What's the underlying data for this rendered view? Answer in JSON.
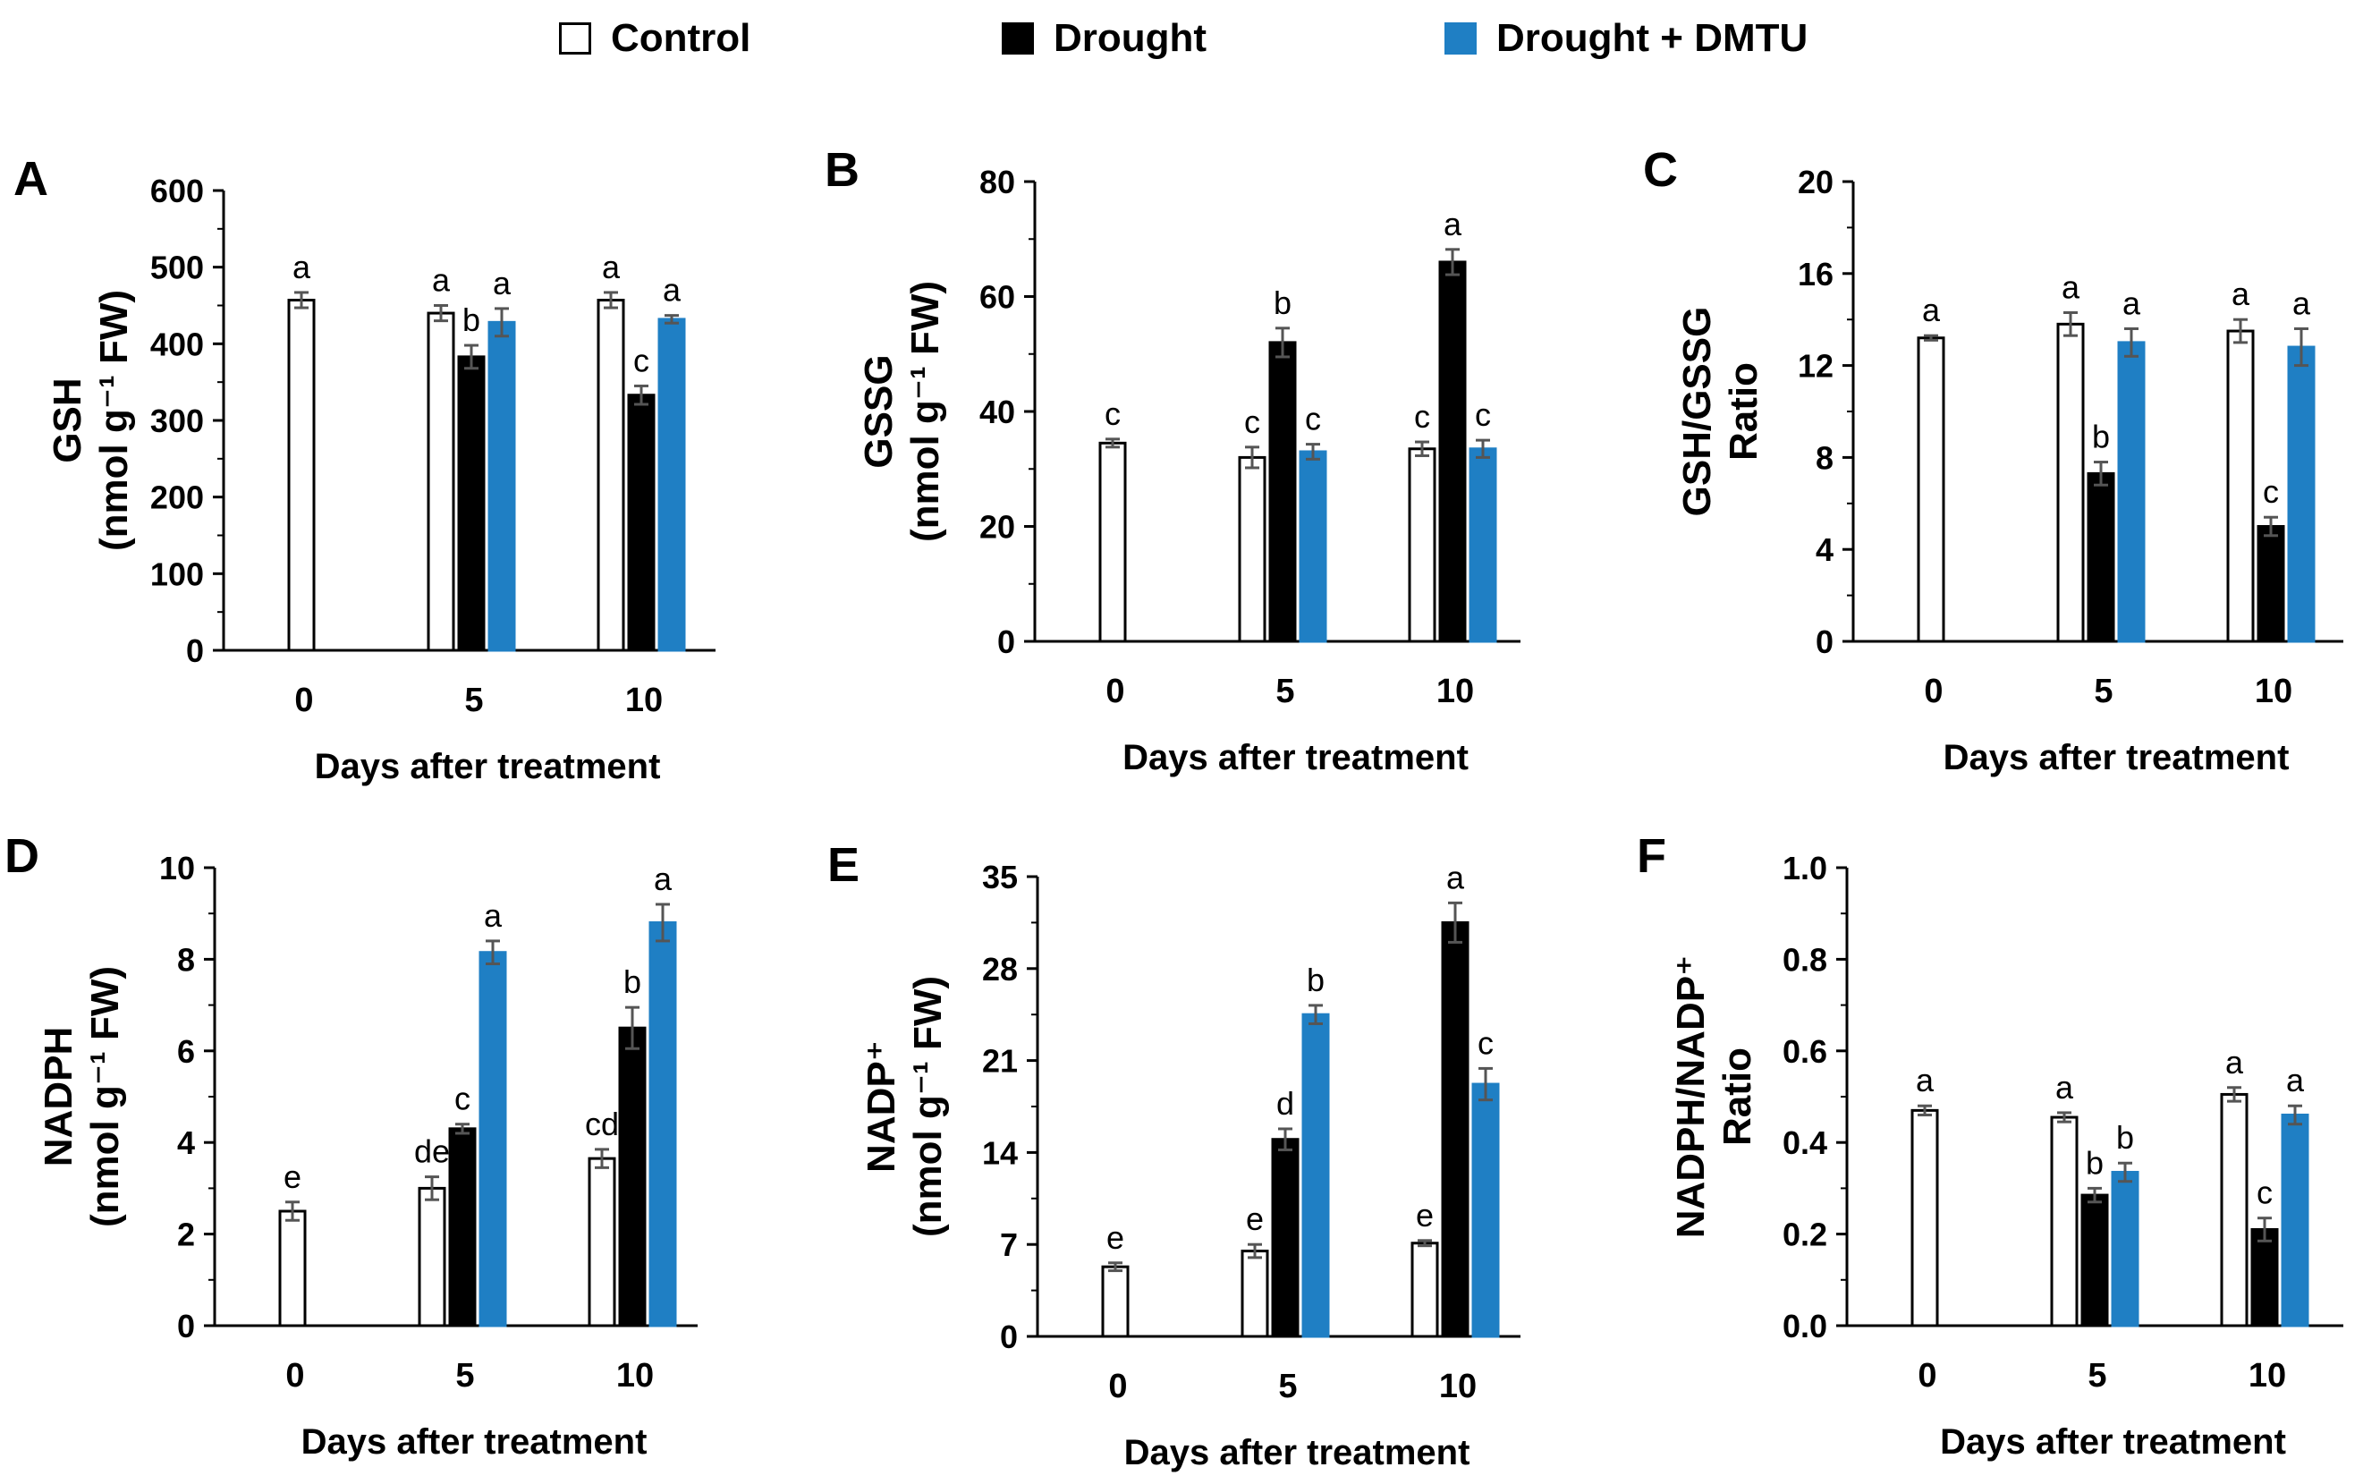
{
  "legend": {
    "items": [
      {
        "label": "Control",
        "color": "#ffffff"
      },
      {
        "label": "Drought",
        "color": "#000000"
      },
      {
        "label": "Drought + DMTU",
        "color": "#1f7fc4"
      }
    ]
  },
  "chart_data": [
    {
      "panel": "A",
      "type": "bar",
      "ylabel_line1": "GSH",
      "ylabel_line2": "(nmol g⁻¹ FW)",
      "xlabel": "Days after treatment",
      "categories": [
        "0",
        "5",
        "10"
      ],
      "ylim": [
        0,
        600
      ],
      "yticks": [
        "0",
        "100",
        "200",
        "300",
        "400",
        "500",
        "600"
      ],
      "series": [
        {
          "name": "Control",
          "values": [
            457,
            440,
            457
          ],
          "errors": [
            10,
            10,
            10
          ],
          "letters": [
            "a",
            "a",
            "a"
          ]
        },
        {
          "name": "Drought",
          "values": [
            null,
            383,
            333
          ],
          "errors": [
            null,
            15,
            12
          ],
          "letters": [
            null,
            "b",
            "c"
          ]
        },
        {
          "name": "Drought + DMTU",
          "values": [
            null,
            428,
            432
          ],
          "errors": [
            null,
            18,
            5
          ],
          "letters": [
            null,
            "a",
            "a"
          ]
        }
      ]
    },
    {
      "panel": "B",
      "type": "bar",
      "ylabel_line1": "GSSG",
      "ylabel_line2": "(nmol g⁻¹ FW)",
      "xlabel": "Days after treatment",
      "categories": [
        "0",
        "5",
        "10"
      ],
      "ylim": [
        0,
        80
      ],
      "yticks": [
        "0",
        "20",
        "40",
        "60",
        "80"
      ],
      "series": [
        {
          "name": "Control",
          "values": [
            34.5,
            32,
            33.5
          ],
          "errors": [
            0.7,
            1.8,
            1.2
          ],
          "letters": [
            "c",
            "c",
            "c"
          ]
        },
        {
          "name": "Drought",
          "values": [
            null,
            52,
            66
          ],
          "errors": [
            null,
            2.5,
            2.2
          ],
          "letters": [
            null,
            "b",
            "a"
          ]
        },
        {
          "name": "Drought + DMTU",
          "values": [
            null,
            33,
            33.5
          ],
          "errors": [
            null,
            1.3,
            1.5
          ],
          "letters": [
            null,
            "c",
            "c"
          ]
        }
      ]
    },
    {
      "panel": "C",
      "type": "bar",
      "ylabel_line1": "GSH/GSSG",
      "ylabel_line2": "Ratio",
      "xlabel": "Days after treatment",
      "categories": [
        "0",
        "5",
        "10"
      ],
      "ylim": [
        0,
        20
      ],
      "yticks": [
        "0",
        "4",
        "8",
        "12",
        "16",
        "20"
      ],
      "series": [
        {
          "name": "Control",
          "values": [
            13.2,
            13.8,
            13.5
          ],
          "errors": [
            0.1,
            0.5,
            0.5
          ],
          "letters": [
            "a",
            "a",
            "a"
          ]
        },
        {
          "name": "Drought",
          "values": [
            null,
            7.3,
            5.0
          ],
          "errors": [
            null,
            0.5,
            0.4
          ],
          "letters": [
            null,
            "b",
            "c"
          ]
        },
        {
          "name": "Drought + DMTU",
          "values": [
            null,
            13.0,
            12.8
          ],
          "errors": [
            null,
            0.6,
            0.8
          ],
          "letters": [
            null,
            "a",
            "a"
          ]
        }
      ]
    },
    {
      "panel": "D",
      "type": "bar",
      "ylabel_line1": "NADPH",
      "ylabel_line2": "(nmol g⁻¹ FW)",
      "xlabel": "Days after treatment",
      "categories": [
        "0",
        "5",
        "10"
      ],
      "ylim": [
        0,
        10
      ],
      "yticks": [
        "0",
        "2",
        "4",
        "6",
        "8",
        "10"
      ],
      "series": [
        {
          "name": "Control",
          "values": [
            2.5,
            3.0,
            3.65
          ],
          "errors": [
            0.2,
            0.25,
            0.2
          ],
          "letters": [
            "e",
            "de",
            "cd"
          ]
        },
        {
          "name": "Drought",
          "values": [
            null,
            4.3,
            6.5
          ],
          "errors": [
            null,
            0.1,
            0.45
          ],
          "letters": [
            null,
            "c",
            "b"
          ]
        },
        {
          "name": "Drought + DMTU",
          "values": [
            null,
            8.15,
            8.8
          ],
          "errors": [
            null,
            0.25,
            0.4
          ],
          "letters": [
            null,
            "a",
            "a"
          ]
        }
      ]
    },
    {
      "panel": "E",
      "type": "bar",
      "ylabel_line1": "NADP⁺",
      "ylabel_line2": "(nmol g⁻¹ FW)",
      "xlabel": "Days after treatment",
      "categories": [
        "0",
        "5",
        "10"
      ],
      "ylim": [
        0,
        35
      ],
      "yticks": [
        "0",
        "7",
        "14",
        "21",
        "28",
        "35"
      ],
      "series": [
        {
          "name": "Control",
          "values": [
            5.3,
            6.5,
            7.1
          ],
          "errors": [
            0.3,
            0.5,
            0.2
          ],
          "letters": [
            "e",
            "e",
            "e"
          ]
        },
        {
          "name": "Drought",
          "values": [
            null,
            15.0,
            31.5
          ],
          "errors": [
            null,
            0.8,
            1.5
          ],
          "letters": [
            null,
            "d",
            "a"
          ]
        },
        {
          "name": "Drought + DMTU",
          "values": [
            null,
            24.5,
            19.2
          ],
          "errors": [
            null,
            0.7,
            1.2
          ],
          "letters": [
            null,
            "b",
            "c"
          ]
        }
      ]
    },
    {
      "panel": "F",
      "type": "bar",
      "ylabel_line1": "NADPH/NADP⁺",
      "ylabel_line2": "Ratio",
      "xlabel": "Days after treatment",
      "categories": [
        "0",
        "5",
        "10"
      ],
      "ylim": [
        0,
        1.0
      ],
      "yticks": [
        "0.0",
        "0.2",
        "0.4",
        "0.6",
        "0.8",
        "1.0"
      ],
      "series": [
        {
          "name": "Control",
          "values": [
            0.47,
            0.455,
            0.505
          ],
          "errors": [
            0.01,
            0.01,
            0.015
          ],
          "letters": [
            "a",
            "a",
            "a"
          ]
        },
        {
          "name": "Drought",
          "values": [
            null,
            0.285,
            0.21
          ],
          "errors": [
            null,
            0.015,
            0.025
          ],
          "letters": [
            null,
            "b",
            "c"
          ]
        },
        {
          "name": "Drought + DMTU",
          "values": [
            null,
            0.335,
            0.46
          ],
          "errors": [
            null,
            0.02,
            0.02
          ],
          "letters": [
            null,
            "b",
            "a"
          ]
        }
      ]
    }
  ]
}
